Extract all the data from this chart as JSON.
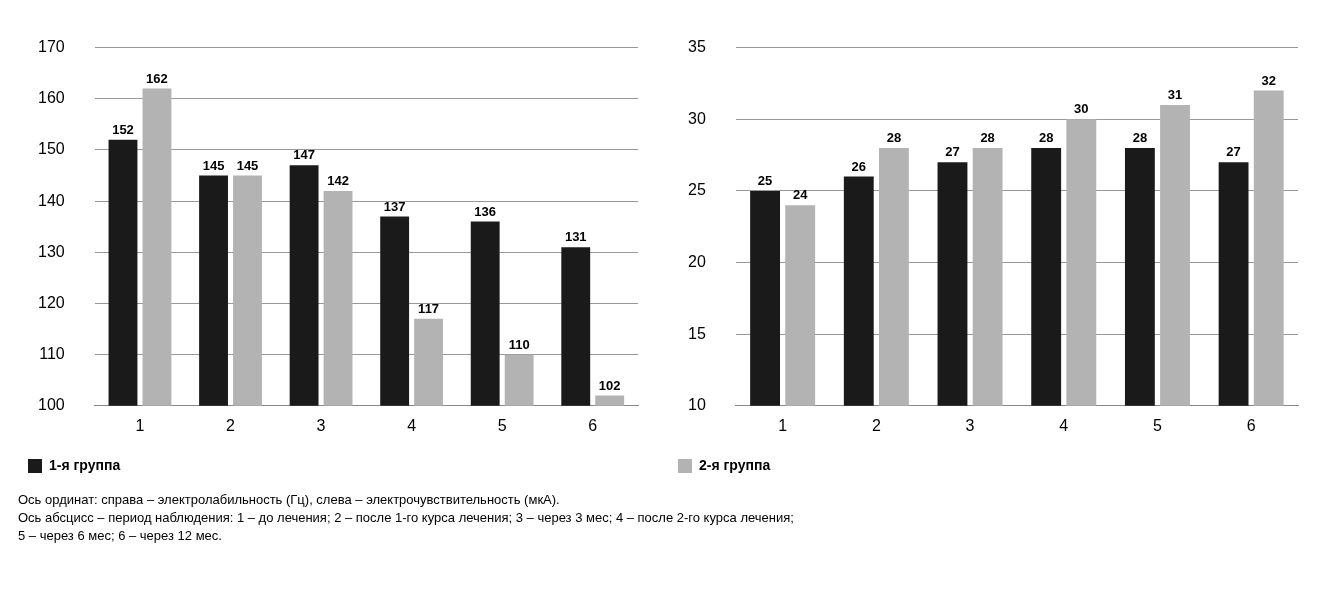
{
  "chart_data": [
    {
      "type": "bar",
      "categories": [
        "1",
        "2",
        "3",
        "4",
        "5",
        "6"
      ],
      "series": [
        {
          "name": "1-я группа",
          "color": "#1a1a1a",
          "values": [
            152,
            145,
            147,
            137,
            136,
            131
          ]
        },
        {
          "color": "#b3b3b3",
          "values": [
            162,
            145,
            142,
            117,
            110,
            102
          ]
        }
      ],
      "ylim": [
        100,
        170
      ],
      "yticks": [
        100,
        110,
        120,
        130,
        140,
        150,
        160,
        170
      ],
      "grid": "y",
      "legend": "bottom left",
      "data_labels": true
    },
    {
      "type": "bar",
      "categories": [
        "1",
        "2",
        "3",
        "4",
        "5",
        "6"
      ],
      "series": [
        {
          "color": "#1a1a1a",
          "values": [
            25,
            26,
            27,
            28,
            28,
            27
          ]
        },
        {
          "name": "2-я группа",
          "color": "#b3b3b3",
          "values": [
            24,
            28,
            28,
            30,
            31,
            32
          ]
        }
      ],
      "ylim": [
        10,
        35
      ],
      "yticks": [
        10,
        15,
        20,
        25,
        30,
        35
      ],
      "grid": "y",
      "legend": "bottom left",
      "data_labels": true,
      "annotations": [
        "Ось ординат: справа – электролабильность (Гц), слева – электрочувствительность (мкА).",
        "Ось абсцисс – период наблюдения: 1 – до лечения; 2 – после 1-го курса лечения; 3 – через 3 мес;  4 – после 2-го курса лечения;",
        "5 – через 6 мес;  6 – через 12 мес."
      ]
    }
  ]
}
